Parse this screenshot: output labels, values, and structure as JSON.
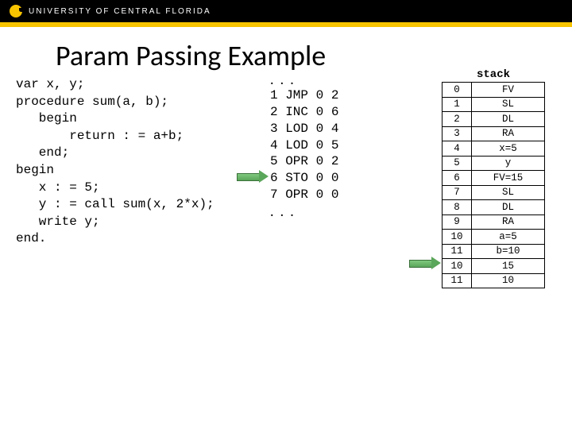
{
  "university": "UNIVERSITY OF CENTRAL FLORIDA",
  "title": "Param Passing Example",
  "colors": {
    "brand_gold": "#f8c400",
    "brand_black": "#000000",
    "arrow_fill": "#5aa65a",
    "arrow_border": "#3a703a"
  },
  "code": {
    "l1": "var x, y;",
    "l2": "procedure sum(a, b);",
    "l3": "   begin",
    "l4": "       return : = a+b;",
    "l5": "   end;",
    "l6": "begin",
    "l7": "   x : = 5;",
    "l8": "   y : = call sum(x, 2*x);",
    "l9": "   write y;",
    "l10": "end."
  },
  "instructions": {
    "dots": ". . .",
    "l1": "1 JMP 0 2",
    "l2": "2 INC 0 6",
    "l3": "3 LOD 0 4",
    "l4": "4 LOD 0 5",
    "l5": "5 OPR 0 2",
    "l6": "6 STO 0 0",
    "l7": "7 OPR 0 0"
  },
  "stack": {
    "title": "stack",
    "rows": [
      {
        "idx": "0",
        "val": "FV"
      },
      {
        "idx": "1",
        "val": "SL"
      },
      {
        "idx": "2",
        "val": "DL"
      },
      {
        "idx": "3",
        "val": "RA"
      },
      {
        "idx": "4",
        "val": "x=5"
      },
      {
        "idx": "5",
        "val": "y"
      },
      {
        "idx": "6",
        "val": "FV=15"
      },
      {
        "idx": "7",
        "val": "SL"
      },
      {
        "idx": "8",
        "val": "DL"
      },
      {
        "idx": "9",
        "val": "RA"
      },
      {
        "idx": "10",
        "val": "a=5"
      },
      {
        "idx": "11",
        "val": "b=10"
      },
      {
        "idx": "10",
        "val": "15"
      },
      {
        "idx": "11",
        "val": "10"
      }
    ]
  }
}
